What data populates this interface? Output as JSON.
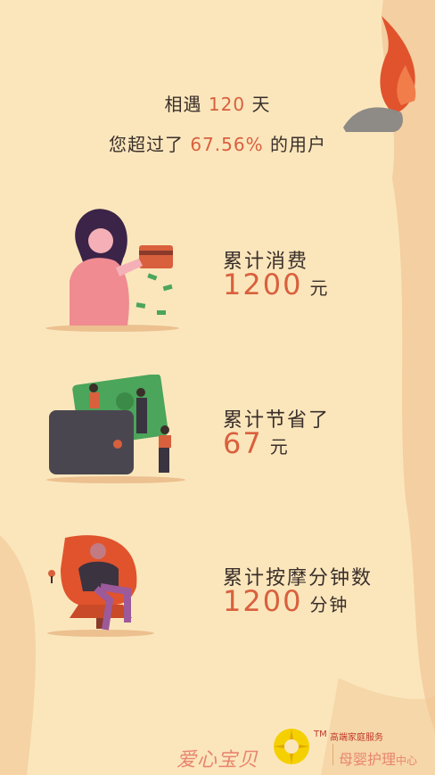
{
  "headline": {
    "line1_prefix": "相遇",
    "days": "120",
    "line1_suffix": "天",
    "line2_prefix": "您超过了",
    "percent": "67.56%",
    "line2_suffix": "的用户"
  },
  "stats": [
    {
      "label": "累计消费",
      "value": "1200",
      "unit": "元"
    },
    {
      "label": "累计节省了",
      "value": "67",
      "unit": "元"
    },
    {
      "label": "累计按摩分钟数",
      "value": "1200",
      "unit": "分钟"
    }
  ],
  "footer": {
    "brand_left": "爱心宝贝",
    "tm": "TM",
    "service": "高端家庭服务",
    "brand_right_main": "母婴护理",
    "brand_right_small": "中心"
  },
  "colors": {
    "background": "#f7d9b4",
    "paper": "#fbe7bd",
    "accent": "#d9603d",
    "text": "#3a2f2a"
  },
  "icons": [
    "flame-decoration",
    "woman-with-card",
    "wallet-with-money",
    "woman-in-chair",
    "logo-sun-icon"
  ]
}
